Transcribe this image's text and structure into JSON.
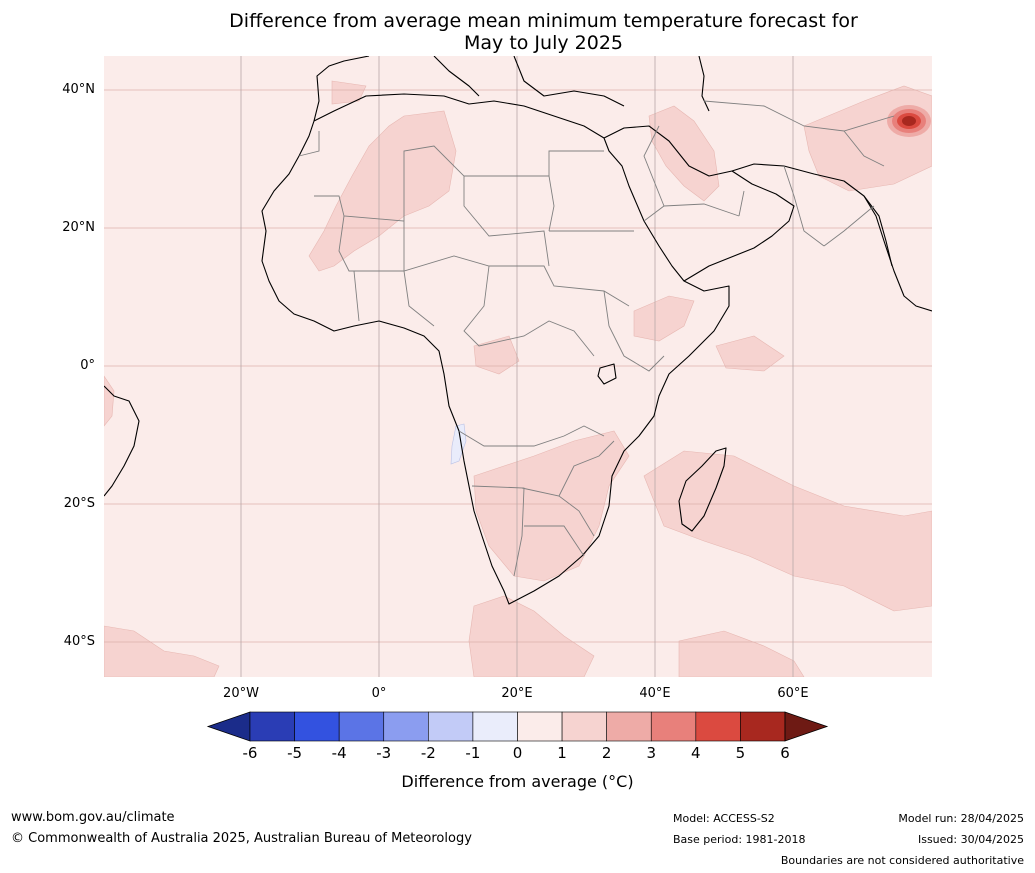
{
  "title": {
    "line1": "Difference from average mean minimum temperature forecast for",
    "line2": "May to July 2025"
  },
  "map": {
    "lat_labels": [
      "40°N",
      "20°N",
      "0°",
      "20°S",
      "40°S"
    ],
    "lon_labels": [
      "20°W",
      "0°",
      "20°E",
      "40°E",
      "60°E"
    ],
    "ocean_color": "#fbecea",
    "warm1_color": "#f6d3d0",
    "cool_color": "#e9ecfb"
  },
  "colorbar": {
    "ticks": [
      "-6",
      "-5",
      "-4",
      "-3",
      "-2",
      "-1",
      "0",
      "1",
      "2",
      "3",
      "4",
      "5",
      "6"
    ],
    "colors": [
      "#1b2c8a",
      "#2a3db5",
      "#3352e0",
      "#5b74e6",
      "#8b9df0",
      "#c2cbf7",
      "#eaedfb",
      "#fbecea",
      "#f6d3d0",
      "#eeaba7",
      "#e8807b",
      "#db4a40",
      "#a8281f",
      "#6e1a14"
    ],
    "label": "Difference from average (°C)"
  },
  "footer": {
    "website": "www.bom.gov.au/climate",
    "copyright": "© Commonwealth of Australia 2025, Australian Bureau of Meteorology",
    "model": "Model: ACCESS-S2",
    "base_period": "Base period: 1981-2018",
    "model_run": "Model run: 28/04/2025",
    "issued": "Issued: 30/04/2025",
    "disclaimer": "Boundaries are not considered authoritative"
  }
}
